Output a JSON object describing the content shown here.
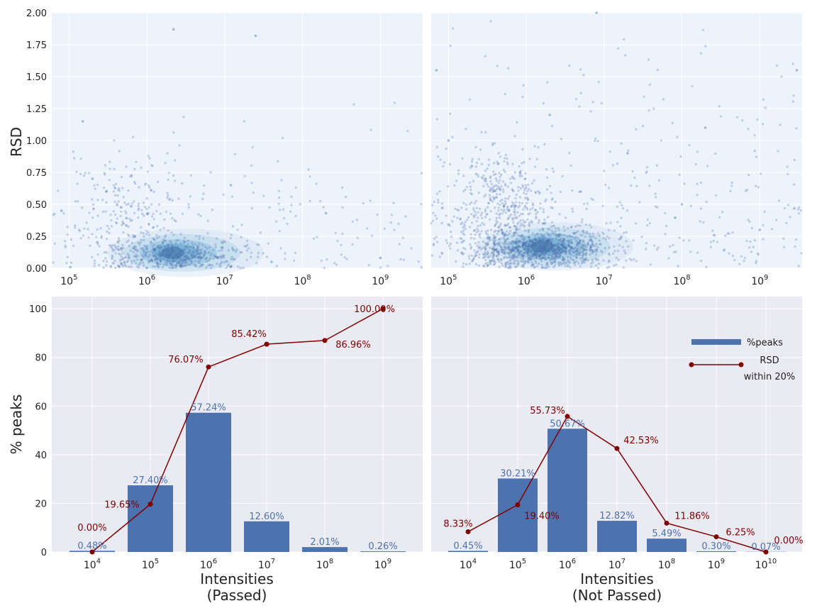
{
  "figure": {
    "top_y_ticks": [
      "0.00",
      "0.25",
      "0.50",
      "0.75",
      "1.00",
      "1.25",
      "1.50",
      "1.75",
      "2.00"
    ],
    "bottom_y_ticks": [
      "0",
      "20",
      "40",
      "60",
      "80",
      "100"
    ]
  },
  "chart_data": [
    {
      "type": "scatter",
      "panel": "top-left",
      "ylabel": "RSD",
      "xlabel": "",
      "x_scale": "log",
      "x_ticks": [
        100000,
        1000000,
        10000000,
        100000000,
        1000000000
      ],
      "x_tick_exponents": [
        "5",
        "6",
        "7",
        "8",
        "9"
      ],
      "xlim": [
        60000,
        3500000000
      ],
      "ylim": [
        0,
        2.0
      ],
      "grid": true,
      "density_cluster": {
        "center_intensity": 2000000,
        "center_rsd": 0.1
      },
      "points_sample": [
        {
          "x": 80000,
          "y": 0.45
        },
        {
          "x": 150000,
          "y": 1.15
        },
        {
          "x": 200000,
          "y": 0.7
        },
        {
          "x": 300000,
          "y": 0.6
        },
        {
          "x": 500000,
          "y": 0.35
        },
        {
          "x": 700000,
          "y": 0.25
        },
        {
          "x": 1000000,
          "y": 0.15
        },
        {
          "x": 2000000,
          "y": 0.1
        },
        {
          "x": 2200000,
          "y": 1.87
        },
        {
          "x": 5000000,
          "y": 0.08
        },
        {
          "x": 12000000,
          "y": 0.65
        },
        {
          "x": 25000000,
          "y": 1.82
        },
        {
          "x": 40000000,
          "y": 0.05
        },
        {
          "x": 200000000,
          "y": 0.43
        },
        {
          "x": 1000000000,
          "y": 0.08
        }
      ]
    },
    {
      "type": "scatter",
      "panel": "top-right",
      "ylabel": "",
      "xlabel": "",
      "x_scale": "log",
      "x_ticks": [
        100000,
        1000000,
        10000000,
        100000000,
        1000000000
      ],
      "x_tick_exponents": [
        "5",
        "6",
        "7",
        "8",
        "9"
      ],
      "xlim": [
        60000,
        3500000000
      ],
      "ylim": [
        0,
        2.0
      ],
      "grid": true,
      "density_cluster": {
        "center_intensity": 1500000,
        "center_rsd": 0.15
      },
      "points_sample": [
        {
          "x": 70000,
          "y": 1.55
        },
        {
          "x": 100000,
          "y": 1.0
        },
        {
          "x": 200000,
          "y": 0.8
        },
        {
          "x": 300000,
          "y": 0.7
        },
        {
          "x": 600000,
          "y": 0.45
        },
        {
          "x": 1000000,
          "y": 0.2
        },
        {
          "x": 2000000,
          "y": 1.2
        },
        {
          "x": 5000000,
          "y": 0.6
        },
        {
          "x": 8000000,
          "y": 2.0
        },
        {
          "x": 20000000,
          "y": 0.9
        },
        {
          "x": 100000000,
          "y": 0.5
        },
        {
          "x": 200000000,
          "y": 1.1
        },
        {
          "x": 1000000000,
          "y": 0.3
        },
        {
          "x": 3000000000,
          "y": 1.55
        }
      ]
    },
    {
      "type": "bar",
      "panel": "bottom-left",
      "ylabel": "% peaks",
      "xlabel": "Intensities\n(Passed)",
      "category_exponents": [
        "4",
        "5",
        "6",
        "7",
        "8",
        "9"
      ],
      "ylim": [
        0,
        105
      ],
      "grid": true,
      "series": [
        {
          "name": "%peaks",
          "type": "bar",
          "values": [
            0.48,
            27.4,
            57.24,
            12.6,
            2.01,
            0.26
          ],
          "labels": [
            "0.48%",
            "27.40%",
            "57.24%",
            "12.60%",
            "2.01%",
            "0.26%"
          ]
        },
        {
          "name": "RSD within 20%",
          "type": "line",
          "values": [
            0.0,
            19.65,
            76.07,
            85.42,
            86.96,
            100.0
          ],
          "labels": [
            "0.00%",
            "19.65%",
            "76.07%",
            "85.42%",
            "86.96%",
            "100.00%"
          ]
        }
      ]
    },
    {
      "type": "bar",
      "panel": "bottom-right",
      "ylabel": "",
      "xlabel": "Intensities\n(Not Passed)",
      "category_exponents": [
        "4",
        "5",
        "6",
        "7",
        "8",
        "9",
        "10"
      ],
      "ylim": [
        0,
        105
      ],
      "grid": true,
      "legend": {
        "placement": "upper-right",
        "entries": [
          "%peaks",
          "RSD\nwithin 20%"
        ]
      },
      "series": [
        {
          "name": "%peaks",
          "type": "bar",
          "values": [
            0.45,
            30.21,
            50.67,
            12.82,
            5.49,
            0.3,
            0.07
          ],
          "labels": [
            "0.45%",
            "30.21%",
            "50.67%",
            "12.82%",
            "5.49%",
            "0.30%",
            "0.07%"
          ]
        },
        {
          "name": "RSD within 20%",
          "type": "line",
          "values": [
            8.33,
            19.4,
            55.73,
            42.53,
            11.86,
            6.25,
            0.0
          ],
          "labels": [
            "8.33%",
            "19.40%",
            "55.73%",
            "42.53%",
            "11.86%",
            "6.25%",
            "0.00%"
          ]
        }
      ]
    }
  ],
  "colors": {
    "bar": "#4c72b0",
    "line": "#800000",
    "scatter_point": "#4a6fae",
    "scatter_bg": "#edf3fb",
    "bar_bg": "#eaeaf2"
  }
}
